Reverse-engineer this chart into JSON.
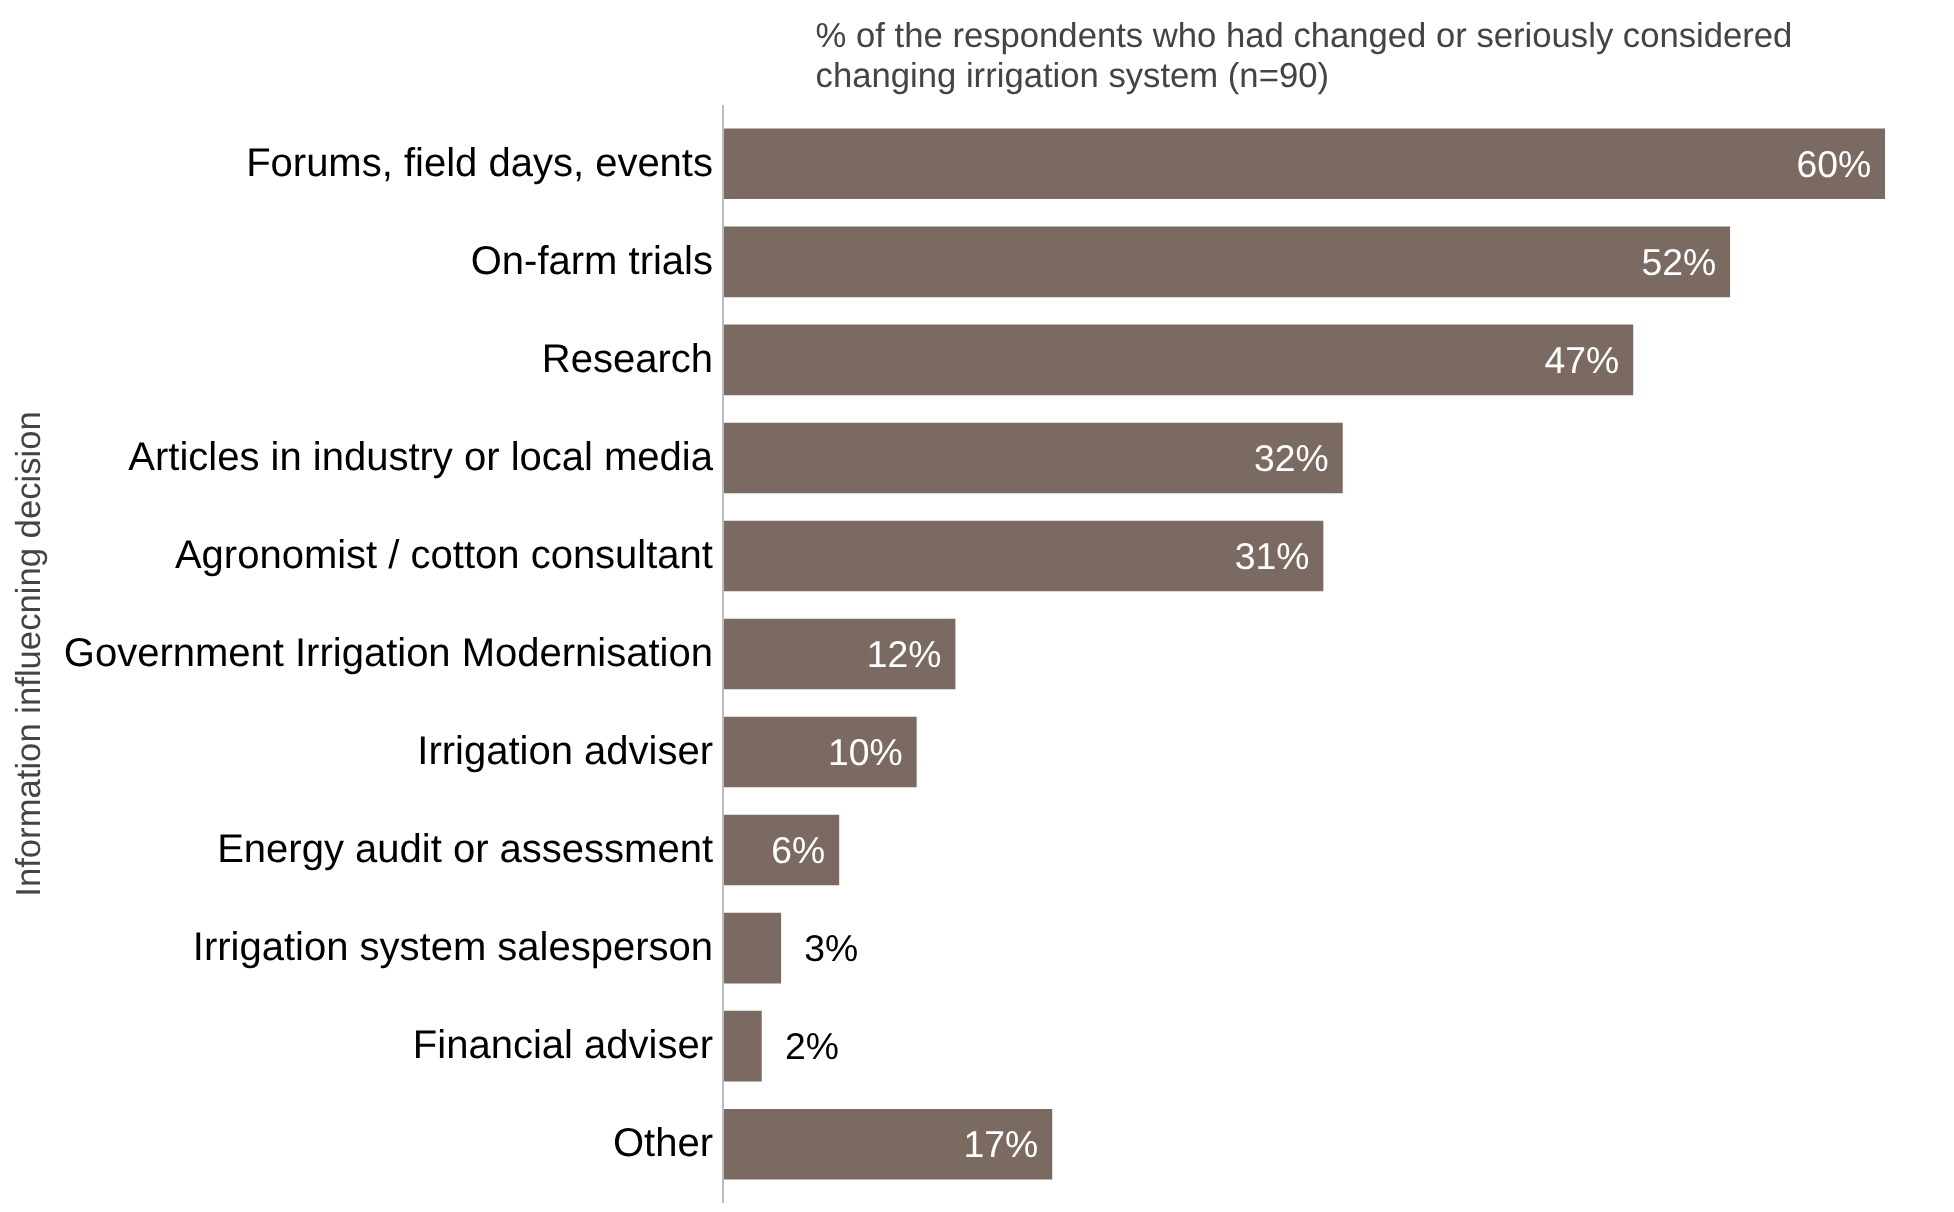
{
  "chart_data": {
    "type": "bar",
    "orientation": "horizontal",
    "title": "% of the respondents who had changed or seriously considered changing irrigation system (n=90)",
    "ylabel": "Information influecning decision",
    "categories": [
      "Forums, field days, events",
      "On-farm trials",
      "Research",
      "Articles in industry or local media",
      "Agronomist / cotton consultant",
      "Government Irrigation Modernisation",
      "Irrigation adviser",
      "Energy audit or assessment",
      "Irrigation system salesperson",
      "Financial adviser",
      "Other"
    ],
    "values": [
      60,
      52,
      47,
      32,
      31,
      12,
      10,
      6,
      3,
      2,
      17
    ],
    "value_labels": [
      "60%",
      "52%",
      "47%",
      "32%",
      "31%",
      "12%",
      "10%",
      "6%",
      "3%",
      "2%",
      "17%"
    ],
    "color": "#7a6a62",
    "grid": false
  }
}
